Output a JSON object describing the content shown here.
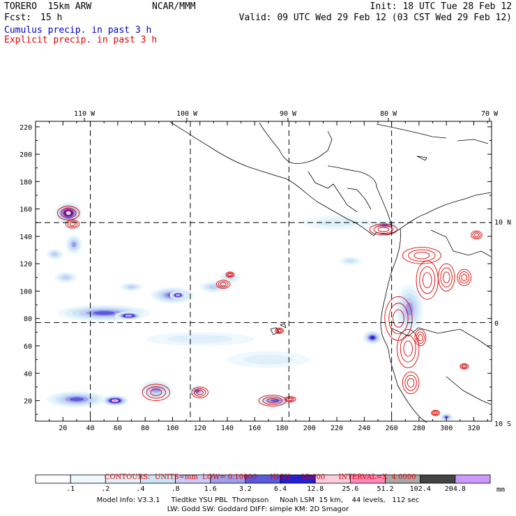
{
  "header": {
    "model": "TORERO  15km ARW",
    "org": "NCAR/MMM",
    "init": "Init: 18 UTC Tue 28 Feb 12",
    "fcst_label": "Fcst:",
    "fcst_value": "15 h",
    "valid": "Valid: 09 UTC Wed 29 Feb 12 (03 CST Wed 29 Feb 12)",
    "legend_cumulus": "Cumulus precip. in past 3 h",
    "legend_explicit": "Explicit precip. in past 3 h"
  },
  "colors": {
    "cumulus": "#0000cc",
    "explicit": "#dd0000",
    "grid": "#000000"
  },
  "chart_data": {
    "type": "heatmap",
    "title": "Cumulus precip. in past 3 h / Explicit precip. in past 3 h",
    "x_ticks": [
      20,
      40,
      60,
      80,
      100,
      120,
      140,
      160,
      180,
      200,
      220,
      240,
      260,
      280,
      300,
      320
    ],
    "y_ticks": [
      20,
      40,
      60,
      80,
      100,
      120,
      140,
      160,
      180,
      200,
      220
    ],
    "xlim": [
      0,
      333
    ],
    "ylim": [
      5,
      224
    ],
    "lon_labels": [
      {
        "label": "110 W",
        "value": -110
      },
      {
        "label": "100 W",
        "value": -100
      },
      {
        "label": "90 W",
        "value": -90
      },
      {
        "label": "80 W",
        "value": -80
      },
      {
        "label": "70 W",
        "value": -70
      }
    ],
    "lat_labels": [
      {
        "label": "10 N",
        "value": 10
      },
      {
        "label": "0",
        "value": 0
      },
      {
        "label": "10 S",
        "value": -10
      }
    ],
    "graticule": {
      "lon_grid_x": [
        40,
        113,
        185,
        260
      ],
      "lat_grid_y": [
        77,
        150
      ]
    },
    "precip_levels": [
      "0.1",
      "0.2",
      "0.4",
      "0.8",
      "1.6",
      "3.2",
      "6.4",
      "12.8",
      "25.6",
      "51.2",
      "102.4",
      "204.8"
    ],
    "colorbar_labels": [
      ".1",
      ".2",
      ".4",
      ".8",
      "1.6",
      "3.2",
      "6.4",
      "12.8",
      "25.6",
      "51.2",
      "102.4",
      "204.8"
    ],
    "colorbar_colors": [
      "#ffffff",
      "#eef8fd",
      "#dff0fa",
      "#c9e6f7",
      "#c8ccf6",
      "#9aa0ee",
      "#5a5ae0",
      "#2020d8",
      "#ffccdd",
      "#ff88bb",
      "#a8a8a8",
      "#444444",
      "#cc99ff"
    ],
    "colorbar_unit": "mm",
    "contours": {
      "label": "CONTOURS:",
      "units": "UNITS=mm",
      "low": "LOW= 0.10000",
      "high": "HIGH=  25.600",
      "interval": "INTERVAL=X  4.0000"
    },
    "blobs": [
      {
        "x": 24,
        "y": 157,
        "rx": 10,
        "ry": 8,
        "level": 8
      },
      {
        "x": 28,
        "y": 134,
        "rx": 6,
        "ry": 7,
        "level": 5
      },
      {
        "x": 14,
        "y": 127,
        "rx": 6,
        "ry": 4,
        "level": 4
      },
      {
        "x": 22,
        "y": 110,
        "rx": 8,
        "ry": 4,
        "level": 4
      },
      {
        "x": 50,
        "y": 84,
        "rx": 34,
        "ry": 6,
        "level": 6
      },
      {
        "x": 68,
        "y": 82,
        "rx": 10,
        "ry": 3,
        "level": 9
      },
      {
        "x": 100,
        "y": 97,
        "rx": 16,
        "ry": 6,
        "level": 6
      },
      {
        "x": 104,
        "y": 97,
        "rx": 6,
        "ry": 3,
        "level": 9
      },
      {
        "x": 70,
        "y": 103,
        "rx": 8,
        "ry": 3,
        "level": 4
      },
      {
        "x": 130,
        "y": 103,
        "rx": 10,
        "ry": 4,
        "level": 4
      },
      {
        "x": 142,
        "y": 110,
        "rx": 8,
        "ry": 4,
        "level": 3
      },
      {
        "x": 30,
        "y": 21,
        "rx": 22,
        "ry": 6,
        "level": 6
      },
      {
        "x": 58,
        "y": 20,
        "rx": 10,
        "ry": 4,
        "level": 9
      },
      {
        "x": 88,
        "y": 28,
        "rx": 12,
        "ry": 7,
        "level": 5
      },
      {
        "x": 118,
        "y": 27,
        "rx": 6,
        "ry": 4,
        "level": 6
      },
      {
        "x": 175,
        "y": 20,
        "rx": 14,
        "ry": 4,
        "level": 6
      },
      {
        "x": 230,
        "y": 122,
        "rx": 8,
        "ry": 3,
        "level": 3
      },
      {
        "x": 246,
        "y": 66,
        "rx": 7,
        "ry": 5,
        "level": 7
      },
      {
        "x": 273,
        "y": 87,
        "rx": 10,
        "ry": 18,
        "level": 5
      },
      {
        "x": 300,
        "y": 8,
        "rx": 5,
        "ry": 3,
        "level": 6
      },
      {
        "x": 170,
        "y": 50,
        "rx": 30,
        "ry": 6,
        "level": 2
      },
      {
        "x": 120,
        "y": 65,
        "rx": 40,
        "ry": 5,
        "level": 2
      },
      {
        "x": 220,
        "y": 150,
        "rx": 25,
        "ry": 5,
        "level": 2
      },
      {
        "x": 255,
        "y": 148,
        "rx": 10,
        "ry": 3,
        "level": 6
      }
    ],
    "explicit_rings": [
      {
        "x": 24,
        "y": 157,
        "rx": 8,
        "ry": 5
      },
      {
        "x": 27,
        "y": 149,
        "rx": 5,
        "ry": 3
      },
      {
        "x": 137,
        "y": 105,
        "rx": 5,
        "ry": 3
      },
      {
        "x": 142,
        "y": 112,
        "rx": 3,
        "ry": 2
      },
      {
        "x": 178,
        "y": 71,
        "rx": 3,
        "ry": 2
      },
      {
        "x": 88,
        "y": 26,
        "rx": 10,
        "ry": 6
      },
      {
        "x": 120,
        "y": 26,
        "rx": 6,
        "ry": 4
      },
      {
        "x": 173,
        "y": 20,
        "rx": 10,
        "ry": 4
      },
      {
        "x": 186,
        "y": 21,
        "rx": 4,
        "ry": 2
      },
      {
        "x": 254,
        "y": 145,
        "rx": 10,
        "ry": 4
      },
      {
        "x": 282,
        "y": 126,
        "rx": 14,
        "ry": 6
      },
      {
        "x": 286,
        "y": 108,
        "rx": 8,
        "ry": 14
      },
      {
        "x": 300,
        "y": 110,
        "rx": 6,
        "ry": 10
      },
      {
        "x": 313,
        "y": 110,
        "rx": 5,
        "ry": 6
      },
      {
        "x": 265,
        "y": 80,
        "rx": 10,
        "ry": 16
      },
      {
        "x": 272,
        "y": 58,
        "rx": 8,
        "ry": 14
      },
      {
        "x": 274,
        "y": 33,
        "rx": 6,
        "ry": 8
      },
      {
        "x": 281,
        "y": 66,
        "rx": 4,
        "ry": 6
      },
      {
        "x": 322,
        "y": 141,
        "rx": 4,
        "ry": 3
      },
      {
        "x": 292,
        "y": 11,
        "rx": 3,
        "ry": 2
      },
      {
        "x": 313,
        "y": 45,
        "rx": 3,
        "ry": 2
      }
    ]
  },
  "footer": {
    "line1": "Model Info: V3.3.1     Tiedtke YSU PBL  Thompson     Noah LSM  15 km,    44 levels,   112 sec",
    "line2": "LW: Godd SW: Goddard DIFF: simple KM: 2D Smagor"
  }
}
